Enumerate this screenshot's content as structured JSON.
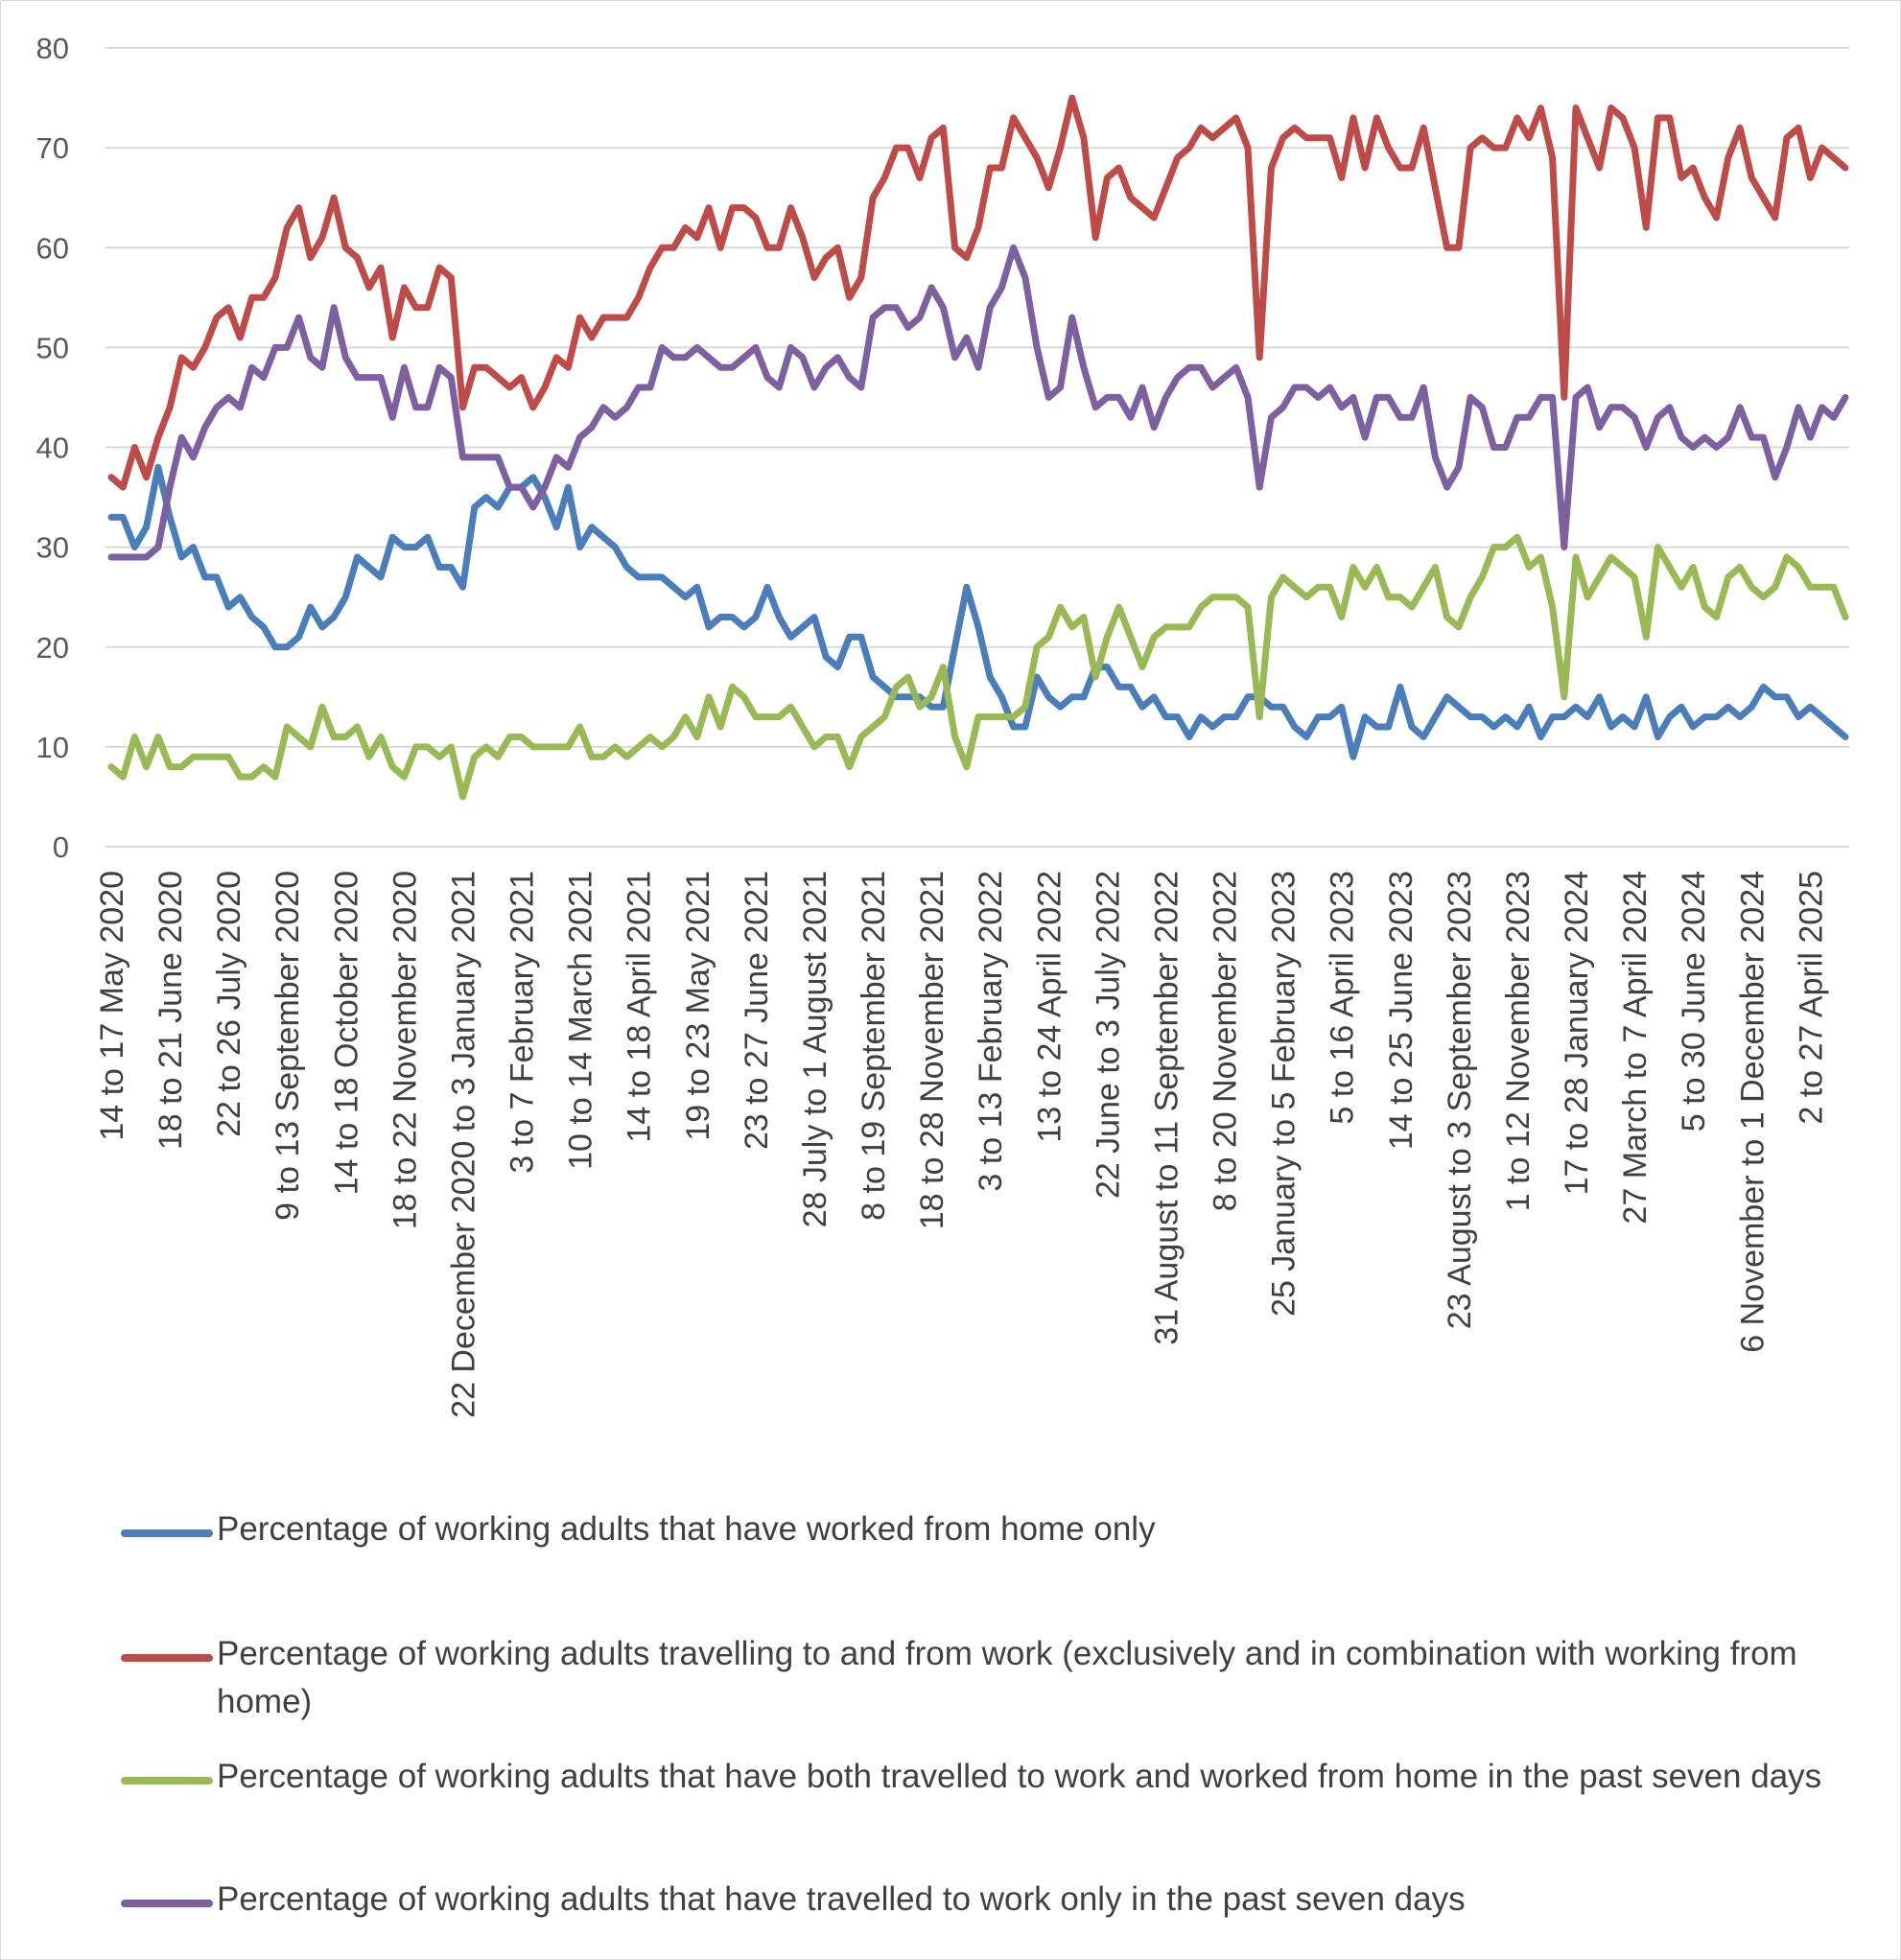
{
  "chart_data": {
    "type": "line",
    "ylim": [
      0,
      80
    ],
    "yticks": [
      0,
      10,
      20,
      30,
      40,
      50,
      60,
      70,
      80
    ],
    "grid": true,
    "legend_position": "bottom",
    "x_tick_labels": [
      "14 to 17 May 2020",
      "18 to 21 June 2020",
      "22 to 26 July 2020",
      "9 to 13 September 2020",
      "14 to 18 October 2020",
      "18 to 22 November 2020",
      "22 December 2020 to 3 January 2021",
      "3 to 7 February 2021",
      "10 to 14 March 2021",
      "14 to 18 April 2021",
      "19 to 23 May 2021",
      "23 to 27 June 2021",
      "28 July to 1 August 2021",
      "8 to 19 September 2021",
      "18 to 28 November 2021",
      "3 to 13 February 2022",
      "13 to 24 April 2022",
      "22 June to 3 July 2022",
      "31 August to 11 September 2022",
      "8 to 20 November 2022",
      "25 January to 5 February 2023",
      "5 to 16 April 2023",
      "14 to 25 June 2023",
      "23 August to 3 September 2023",
      "1 to 12 November 2023",
      "17 to 28 January 2024",
      "27 March to 7 April 2024",
      "5 to 30 June 2024",
      "6 November to 1 December 2024",
      "2 to 27 April 2025"
    ],
    "series": [
      {
        "name": "Percentage of working adults that have worked from home only",
        "color": "#4a7ebb",
        "values": [
          33,
          33,
          30,
          32,
          38,
          33,
          29,
          30,
          27,
          27,
          24,
          25,
          23,
          22,
          20,
          20,
          21,
          24,
          22,
          23,
          25,
          29,
          28,
          27,
          31,
          30,
          30,
          31,
          28,
          28,
          26,
          34,
          35,
          34,
          36,
          36,
          37,
          35,
          32,
          36,
          30,
          32,
          31,
          30,
          28,
          27,
          27,
          27,
          26,
          25,
          26,
          22,
          23,
          23,
          22,
          23,
          26,
          23,
          21,
          22,
          23,
          19,
          18,
          21,
          21,
          17,
          16,
          15,
          15,
          15,
          14,
          14,
          20,
          26,
          22,
          17,
          15,
          12,
          12,
          17,
          15,
          14,
          15,
          15,
          18,
          18,
          16,
          16,
          14,
          15,
          13,
          13,
          11,
          13,
          12,
          13,
          13,
          15,
          15,
          14,
          14,
          12,
          11,
          13,
          13,
          14,
          9,
          13,
          12,
          12,
          16,
          12,
          11,
          13,
          15,
          14,
          13,
          13,
          12,
          13,
          12,
          14,
          11,
          13,
          13,
          14,
          13,
          15,
          12,
          13,
          12,
          15,
          11,
          13,
          14,
          12,
          13,
          13,
          14,
          13,
          14,
          16,
          15,
          15,
          13,
          14,
          13,
          12,
          11
        ]
      },
      {
        "name": "Percentage of working adults travelling to and from work (exclusively and in combination with working from home)",
        "color": "#be4b48",
        "values": [
          37,
          36,
          40,
          37,
          41,
          44,
          49,
          48,
          50,
          53,
          54,
          51,
          55,
          55,
          57,
          62,
          64,
          59,
          61,
          65,
          60,
          59,
          56,
          58,
          51,
          56,
          54,
          54,
          58,
          57,
          44,
          48,
          48,
          47,
          46,
          47,
          44,
          46,
          49,
          48,
          53,
          51,
          53,
          53,
          53,
          55,
          58,
          60,
          60,
          62,
          61,
          64,
          60,
          64,
          64,
          63,
          60,
          60,
          64,
          61,
          57,
          59,
          60,
          55,
          57,
          65,
          67,
          70,
          70,
          67,
          71,
          72,
          60,
          59,
          62,
          68,
          68,
          73,
          71,
          69,
          66,
          70,
          75,
          71,
          61,
          67,
          68,
          65,
          64,
          63,
          66,
          69,
          70,
          72,
          71,
          72,
          73,
          70,
          49,
          68,
          71,
          72,
          71,
          71,
          71,
          67,
          73,
          68,
          73,
          70,
          68,
          68,
          72,
          66,
          60,
          60,
          70,
          71,
          70,
          70,
          73,
          71,
          74,
          69,
          45,
          74,
          71,
          68,
          74,
          73,
          70,
          62,
          73,
          73,
          67,
          68,
          65,
          63,
          69,
          72,
          67,
          65,
          63,
          71,
          72,
          67,
          70,
          69,
          68
        ]
      },
      {
        "name": "Percentage of working adults that have both travelled to work and worked from home in the past seven days",
        "color": "#98b954",
        "values": [
          8,
          7,
          11,
          8,
          11,
          8,
          8,
          9,
          9,
          9,
          9,
          7,
          7,
          8,
          7,
          12,
          11,
          10,
          14,
          11,
          11,
          12,
          9,
          11,
          8,
          7,
          10,
          10,
          9,
          10,
          5,
          9,
          10,
          9,
          11,
          11,
          10,
          10,
          10,
          10,
          12,
          9,
          9,
          10,
          9,
          10,
          11,
          10,
          11,
          13,
          11,
          15,
          12,
          16,
          15,
          13,
          13,
          13,
          14,
          12,
          10,
          11,
          11,
          8,
          11,
          12,
          13,
          16,
          17,
          14,
          15,
          18,
          11,
          8,
          13,
          13,
          13,
          13,
          14,
          20,
          21,
          24,
          22,
          23,
          17,
          21,
          24,
          21,
          18,
          21,
          22,
          22,
          22,
          24,
          25,
          25,
          25,
          24,
          13,
          25,
          27,
          26,
          25,
          26,
          26,
          23,
          28,
          26,
          28,
          25,
          25,
          24,
          26,
          28,
          23,
          22,
          25,
          27,
          30,
          30,
          31,
          28,
          29,
          24,
          15,
          29,
          25,
          27,
          29,
          28,
          27,
          21,
          30,
          28,
          26,
          28,
          24,
          23,
          27,
          28,
          26,
          25,
          26,
          29,
          28,
          26,
          26,
          26,
          23
        ]
      },
      {
        "name": "Percentage of working adults that have travelled to work only in the past seven days",
        "color": "#7d60a0",
        "values": [
          29,
          29,
          29,
          29,
          30,
          36,
          41,
          39,
          42,
          44,
          45,
          44,
          48,
          47,
          50,
          50,
          53,
          49,
          48,
          54,
          49,
          47,
          47,
          47,
          43,
          48,
          44,
          44,
          48,
          47,
          39,
          39,
          39,
          39,
          36,
          36,
          34,
          36,
          39,
          38,
          41,
          42,
          44,
          43,
          44,
          46,
          46,
          50,
          49,
          49,
          50,
          49,
          48,
          48,
          49,
          50,
          47,
          46,
          50,
          49,
          46,
          48,
          49,
          47,
          46,
          53,
          54,
          54,
          52,
          53,
          56,
          54,
          49,
          51,
          48,
          54,
          56,
          60,
          57,
          50,
          45,
          46,
          53,
          48,
          44,
          45,
          45,
          43,
          46,
          42,
          45,
          47,
          48,
          48,
          46,
          47,
          48,
          45,
          36,
          43,
          44,
          46,
          46,
          45,
          46,
          44,
          45,
          41,
          45,
          45,
          43,
          43,
          46,
          39,
          36,
          38,
          45,
          44,
          40,
          40,
          43,
          43,
          45,
          45,
          30,
          45,
          46,
          42,
          44,
          44,
          43,
          40,
          43,
          44,
          41,
          40,
          41,
          40,
          41,
          44,
          41,
          41,
          37,
          40,
          44,
          41,
          44,
          43,
          45
        ]
      }
    ]
  }
}
